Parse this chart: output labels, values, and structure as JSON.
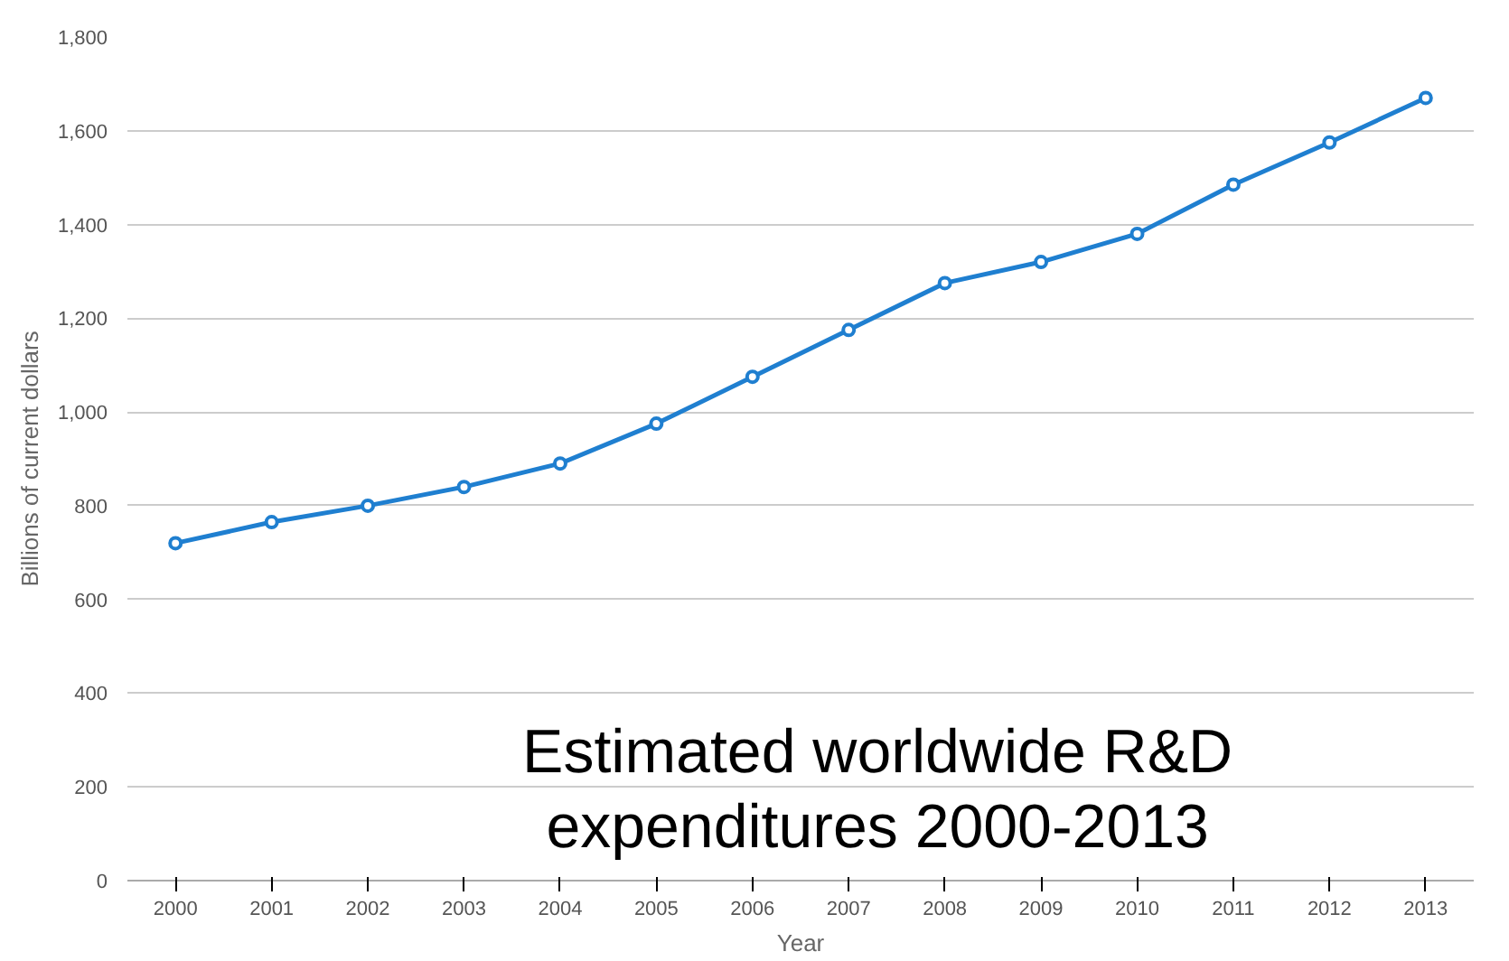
{
  "chart_data": {
    "type": "line",
    "xlabel": "Year",
    "ylabel": "Billions of current dollars",
    "categories": [
      "2000",
      "2001",
      "2002",
      "2003",
      "2004",
      "2005",
      "2006",
      "2007",
      "2008",
      "2009",
      "2010",
      "2011",
      "2012",
      "2013"
    ],
    "series": [
      {
        "color": "#1f7fd0",
        "values": [
          720,
          765,
          800,
          840,
          890,
          975,
          1075,
          1175,
          1275,
          1320,
          1380,
          1485,
          1575,
          1670
        ]
      }
    ],
    "ylim": [
      0,
      1800
    ],
    "yticks": [
      0,
      {
        "value": 200,
        "label": "200"
      },
      {
        "value": 400,
        "label": "400"
      },
      {
        "value": 600,
        "label": "600"
      },
      {
        "value": 800,
        "label": "800"
      },
      {
        "value": 1000,
        "label": "1,000"
      },
      {
        "value": 1200,
        "label": "1,200"
      },
      {
        "value": 1400,
        "label": "1,400"
      },
      {
        "value": 1600,
        "label": "1,600"
      },
      {
        "value": 1800,
        "label": "1,800"
      }
    ],
    "grid": "y",
    "marker": "circle",
    "line_style": "solid",
    "annotations": [
      "Estimated worldwide R&D\nexpenditures 2000-2013"
    ]
  }
}
